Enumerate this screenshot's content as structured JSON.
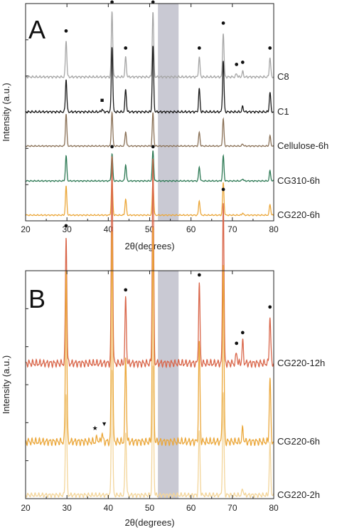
{
  "chart_data": [
    {
      "type": "line",
      "panel_letter": "A",
      "xlabel": "2θ(degrees)",
      "ylabel": "Intensity (a.u.)",
      "xlim": [
        20,
        80
      ],
      "xticks": [
        20,
        30,
        40,
        50,
        60,
        70,
        80
      ],
      "shaded_region": [
        52,
        57
      ],
      "grid": false,
      "series": [
        {
          "name": "C8",
          "color": "#a6a6a6",
          "amplitude": 1.0,
          "peaks": [
            [
              29.8,
              0.56
            ],
            [
              40.9,
              1.0
            ],
            [
              44.2,
              0.3
            ],
            [
              50.8,
              1.0
            ],
            [
              62.0,
              0.3
            ],
            [
              67.8,
              0.68
            ],
            [
              71.0,
              0.05
            ],
            [
              72.5,
              0.08
            ],
            [
              79.1,
              0.3
            ]
          ]
        },
        {
          "name": "C1",
          "color": "#1a1a1a",
          "amplitude": 1.0,
          "peaks": [
            [
              29.8,
              0.5
            ],
            [
              38.5,
              0.04
            ],
            [
              40.9,
              1.0
            ],
            [
              44.2,
              0.35
            ],
            [
              50.8,
              1.0
            ],
            [
              62.0,
              0.35
            ],
            [
              67.8,
              0.78
            ],
            [
              72.5,
              0.08
            ],
            [
              79.1,
              0.3
            ]
          ]
        },
        {
          "name": "Cellulose-6h",
          "color": "#8a7157",
          "amplitude": 0.55,
          "peaks": [
            [
              29.8,
              0.9
            ],
            [
              40.9,
              0.95
            ],
            [
              44.2,
              0.4
            ],
            [
              50.8,
              0.92
            ],
            [
              62.0,
              0.38
            ],
            [
              67.8,
              0.75
            ],
            [
              72.5,
              0.06
            ],
            [
              79.1,
              0.28
            ]
          ]
        },
        {
          "name": "CG310-6h",
          "color": "#2e7a55",
          "amplitude": 0.55,
          "peaks": [
            [
              29.8,
              0.7
            ],
            [
              40.9,
              0.75
            ],
            [
              44.2,
              0.45
            ],
            [
              50.8,
              0.85
            ],
            [
              62.0,
              0.38
            ],
            [
              67.8,
              0.7
            ],
            [
              72.5,
              0.06
            ],
            [
              79.1,
              0.28
            ]
          ]
        },
        {
          "name": "CG220-6h",
          "color": "#eba73a",
          "amplitude": 0.55,
          "peaks": [
            [
              29.8,
              0.8
            ],
            [
              40.9,
              1.0
            ],
            [
              44.2,
              0.45
            ],
            [
              50.8,
              0.95
            ],
            [
              62.0,
              0.4
            ],
            [
              67.8,
              0.9
            ],
            [
              72.5,
              0.06
            ],
            [
              79.1,
              0.3
            ]
          ]
        }
      ]
    },
    {
      "type": "line",
      "panel_letter": "B",
      "xlabel": "2θ(degrees)",
      "ylabel": "Intensity (a.u.)",
      "xlim": [
        20,
        80
      ],
      "xticks": [
        20,
        30,
        40,
        50,
        60,
        70,
        80
      ],
      "shaded_region": [
        52,
        57
      ],
      "grid": false,
      "series": [
        {
          "name": "CG220-12h",
          "color": "#d9664a",
          "amplitude": 1.0,
          "peaks": [
            [
              29.8,
              0.6
            ],
            [
              40.9,
              0.97
            ],
            [
              44.2,
              0.3
            ],
            [
              50.8,
              0.97
            ],
            [
              62.0,
              0.37
            ],
            [
              67.8,
              0.77
            ],
            [
              71.0,
              0.05
            ],
            [
              72.5,
              0.1
            ],
            [
              79.1,
              0.22
            ]
          ]
        },
        {
          "name": "CG220-6h",
          "color": "#eba73a",
          "amplitude": 1.0,
          "peaks": [
            [
              29.8,
              0.81
            ],
            [
              37.3,
              0.02
            ],
            [
              38.5,
              0.04
            ],
            [
              40.9,
              1.0
            ],
            [
              44.2,
              0.4
            ],
            [
              50.8,
              1.0
            ],
            [
              62.0,
              0.46
            ],
            [
              67.8,
              0.83
            ],
            [
              72.5,
              0.06
            ],
            [
              79.1,
              0.3
            ]
          ]
        },
        {
          "name": "CG220-2h",
          "color": "#f3d59a",
          "amplitude": 0.6,
          "peaks": [
            [
              29.8,
              0.8
            ],
            [
              40.9,
              1.0
            ],
            [
              44.2,
              0.5
            ],
            [
              50.8,
              1.0
            ],
            [
              62.0,
              0.5
            ],
            [
              67.8,
              0.8
            ],
            [
              72.5,
              0.05
            ],
            [
              79.1,
              0.4
            ]
          ]
        }
      ]
    }
  ],
  "markers": {
    "A": [
      {
        "symbol": "●",
        "x": 29.8,
        "series": 0
      },
      {
        "symbol": "●",
        "x": 40.9,
        "series": 0
      },
      {
        "symbol": "●",
        "x": 44.2,
        "series": 0
      },
      {
        "symbol": "●",
        "x": 50.8,
        "series": 0
      },
      {
        "symbol": "●",
        "x": 62.0,
        "series": 0
      },
      {
        "symbol": "●",
        "x": 67.8,
        "series": 0
      },
      {
        "symbol": "●",
        "x": 71.0,
        "series": 0
      },
      {
        "symbol": "●",
        "x": 72.5,
        "series": 0
      },
      {
        "symbol": "●",
        "x": 79.1,
        "series": 0
      },
      {
        "symbol": "■",
        "x": 38.5,
        "series": 1
      }
    ],
    "B": [
      {
        "symbol": "●",
        "x": 29.8,
        "series": 0
      },
      {
        "symbol": "●",
        "x": 40.9,
        "series": 0
      },
      {
        "symbol": "●",
        "x": 44.2,
        "series": 0
      },
      {
        "symbol": "●",
        "x": 50.8,
        "series": 0
      },
      {
        "symbol": "●",
        "x": 62.0,
        "series": 0
      },
      {
        "symbol": "●",
        "x": 67.8,
        "series": 0
      },
      {
        "symbol": "●",
        "x": 71.0,
        "series": 0
      },
      {
        "symbol": "●",
        "x": 72.5,
        "series": 0
      },
      {
        "symbol": "●",
        "x": 79.1,
        "series": 0
      },
      {
        "symbol": "★",
        "x": 37.3,
        "series": 1
      },
      {
        "symbol": "▼",
        "x": 38.5,
        "series": 1
      }
    ]
  },
  "colors": {
    "shade": "#c9c9d3",
    "axis": "#222222"
  }
}
